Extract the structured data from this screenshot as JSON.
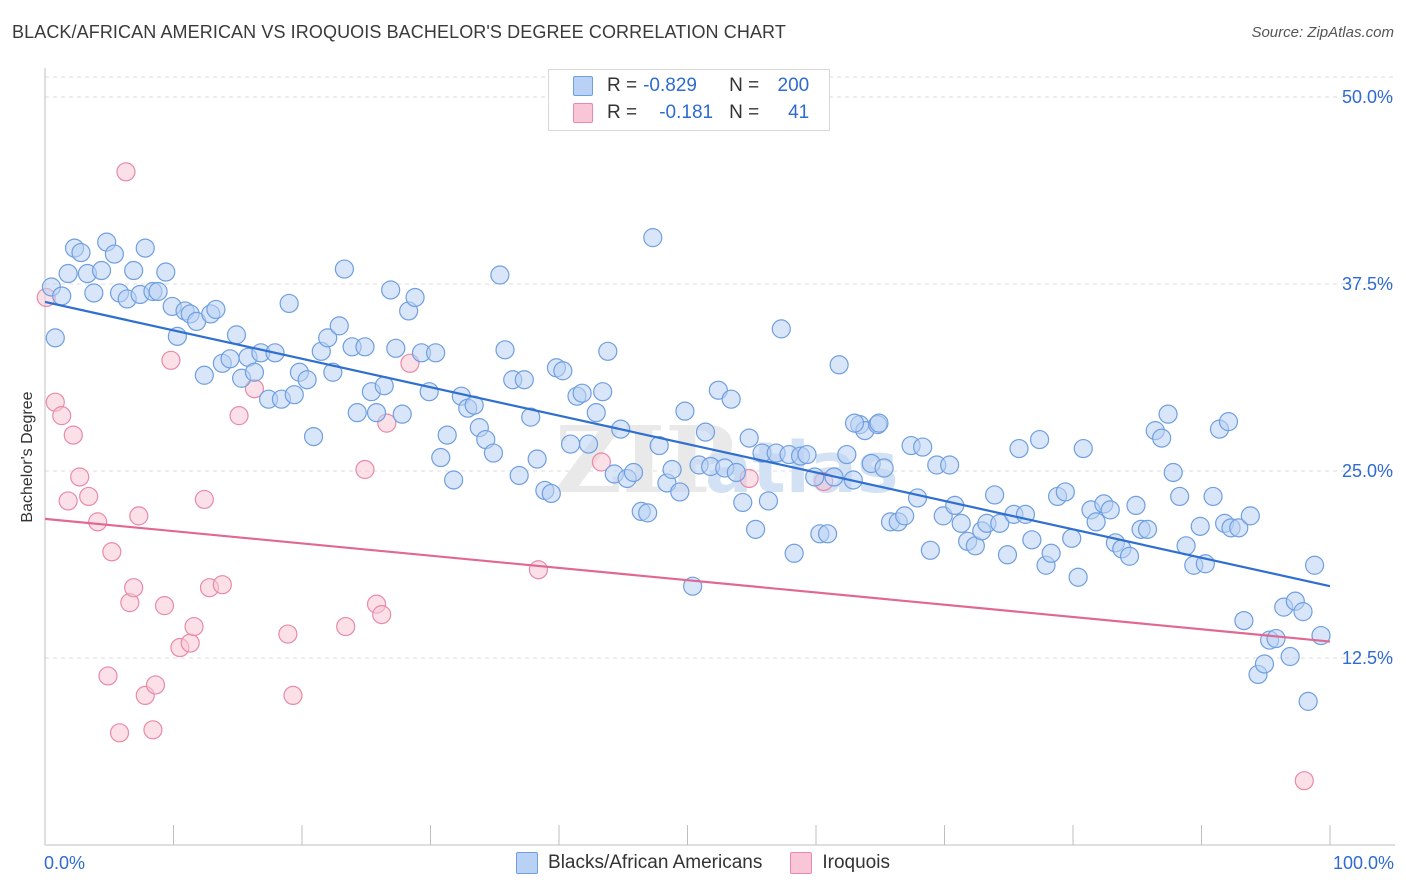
{
  "header": {
    "title": "BLACK/AFRICAN AMERICAN VS IROQUOIS BACHELOR'S DEGREE CORRELATION CHART",
    "source": "Source: ZipAtlas.com"
  },
  "legend": {
    "r_label": "R =",
    "n_label": "N =",
    "rows": [
      {
        "r": "-0.829",
        "n": "200"
      },
      {
        "r": "-0.181",
        "n": "41"
      }
    ]
  },
  "colors": {
    "blue_fill": "#b9d1f4",
    "blue_stroke": "#6f9fe0",
    "blue_line": "#2f6fd0",
    "pink_fill": "#f8c6d6",
    "pink_stroke": "#e88aa8",
    "pink_line": "#e06893",
    "grid": "#dcdcdc",
    "axis_label": "#2f6bd0"
  },
  "chart_data": {
    "type": "scatter",
    "title": "BLACK/AFRICAN AMERICAN VS IROQUOIS BACHELOR'S DEGREE CORRELATION CHART",
    "xlabel": "",
    "ylabel": "Bachelor's Degree",
    "xlim": [
      0,
      100
    ],
    "ylim": [
      0,
      50
    ],
    "x_tick_labels": [
      "0.0%",
      "100.0%"
    ],
    "y_ticks": [
      12.5,
      25.0,
      37.5,
      50.0
    ],
    "y_tick_labels": [
      "12.5%",
      "25.0%",
      "37.5%",
      "50.0%"
    ],
    "grid": true,
    "watermark": "ZIPatlas",
    "series": [
      {
        "name": "Blacks/African Americans",
        "color": "#6f9fe0",
        "trend": {
          "x": [
            0,
            100
          ],
          "y": [
            36.3,
            17.3
          ]
        },
        "points": [
          [
            0.5,
            37.3
          ],
          [
            0.8,
            33.9
          ],
          [
            1.3,
            36.7
          ],
          [
            1.8,
            38.2
          ],
          [
            2.3,
            39.9
          ],
          [
            2.8,
            39.6
          ],
          [
            3.3,
            38.2
          ],
          [
            3.8,
            36.9
          ],
          [
            4.4,
            38.4
          ],
          [
            4.8,
            40.3
          ],
          [
            5.4,
            39.5
          ],
          [
            5.8,
            36.9
          ],
          [
            6.4,
            36.5
          ],
          [
            6.9,
            38.4
          ],
          [
            7.4,
            36.8
          ],
          [
            7.8,
            39.9
          ],
          [
            8.4,
            37.0
          ],
          [
            8.8,
            37.0
          ],
          [
            9.4,
            38.3
          ],
          [
            9.9,
            36.0
          ],
          [
            10.3,
            34.0
          ],
          [
            10.9,
            35.7
          ],
          [
            11.3,
            35.5
          ],
          [
            11.8,
            35.0
          ],
          [
            12.4,
            31.4
          ],
          [
            12.9,
            35.5
          ],
          [
            13.3,
            35.8
          ],
          [
            13.8,
            32.2
          ],
          [
            14.4,
            32.5
          ],
          [
            14.9,
            34.1
          ],
          [
            15.3,
            31.2
          ],
          [
            15.8,
            32.6
          ],
          [
            16.3,
            31.6
          ],
          [
            16.8,
            32.9
          ],
          [
            17.4,
            29.8
          ],
          [
            17.9,
            32.9
          ],
          [
            18.4,
            29.8
          ],
          [
            19.0,
            36.2
          ],
          [
            19.4,
            30.1
          ],
          [
            19.8,
            31.6
          ],
          [
            20.4,
            31.1
          ],
          [
            20.9,
            27.3
          ],
          [
            21.5,
            33.0
          ],
          [
            22.0,
            33.9
          ],
          [
            22.4,
            31.6
          ],
          [
            22.9,
            34.7
          ],
          [
            23.3,
            38.5
          ],
          [
            23.9,
            33.3
          ],
          [
            24.3,
            28.9
          ],
          [
            24.9,
            33.3
          ],
          [
            25.4,
            30.3
          ],
          [
            25.8,
            28.9
          ],
          [
            26.4,
            30.7
          ],
          [
            26.9,
            37.1
          ],
          [
            27.3,
            33.2
          ],
          [
            27.8,
            28.8
          ],
          [
            28.3,
            35.7
          ],
          [
            28.8,
            36.6
          ],
          [
            29.3,
            32.9
          ],
          [
            29.9,
            30.3
          ],
          [
            30.4,
            32.9
          ],
          [
            30.8,
            25.9
          ],
          [
            31.3,
            27.4
          ],
          [
            31.8,
            24.4
          ],
          [
            32.4,
            30.0
          ],
          [
            32.9,
            29.2
          ],
          [
            33.4,
            29.4
          ],
          [
            33.8,
            27.9
          ],
          [
            34.3,
            27.1
          ],
          [
            34.9,
            26.2
          ],
          [
            35.4,
            38.1
          ],
          [
            35.8,
            33.1
          ],
          [
            36.4,
            31.1
          ],
          [
            36.9,
            24.7
          ],
          [
            37.3,
            31.1
          ],
          [
            37.8,
            28.6
          ],
          [
            38.3,
            25.8
          ],
          [
            38.9,
            23.7
          ],
          [
            39.4,
            23.5
          ],
          [
            39.8,
            31.9
          ],
          [
            40.3,
            31.7
          ],
          [
            40.9,
            26.8
          ],
          [
            41.4,
            30.0
          ],
          [
            41.8,
            30.2
          ],
          [
            42.3,
            26.8
          ],
          [
            42.9,
            28.9
          ],
          [
            43.4,
            30.3
          ],
          [
            43.8,
            33.0
          ],
          [
            44.3,
            24.8
          ],
          [
            44.8,
            27.8
          ],
          [
            45.3,
            24.5
          ],
          [
            45.8,
            24.9
          ],
          [
            46.4,
            22.3
          ],
          [
            46.9,
            22.2
          ],
          [
            47.3,
            40.6
          ],
          [
            47.8,
            26.7
          ],
          [
            48.4,
            24.2
          ],
          [
            48.8,
            25.1
          ],
          [
            49.4,
            23.6
          ],
          [
            49.8,
            29.0
          ],
          [
            50.4,
            17.3
          ],
          [
            50.9,
            25.4
          ],
          [
            51.4,
            27.6
          ],
          [
            51.8,
            25.3
          ],
          [
            52.4,
            30.4
          ],
          [
            52.9,
            25.2
          ],
          [
            53.4,
            29.8
          ],
          [
            53.8,
            24.9
          ],
          [
            54.3,
            22.9
          ],
          [
            54.8,
            27.2
          ],
          [
            55.3,
            21.1
          ],
          [
            55.8,
            26.2
          ],
          [
            56.3,
            23.0
          ],
          [
            56.9,
            26.2
          ],
          [
            57.3,
            34.5
          ],
          [
            57.9,
            26.1
          ],
          [
            58.3,
            19.5
          ],
          [
            58.8,
            26.0
          ],
          [
            59.3,
            26.1
          ],
          [
            59.9,
            24.6
          ],
          [
            60.3,
            20.8
          ],
          [
            60.9,
            20.8
          ],
          [
            61.4,
            24.6
          ],
          [
            61.8,
            32.1
          ],
          [
            62.4,
            26.1
          ],
          [
            62.9,
            24.4
          ],
          [
            63.4,
            28.1
          ],
          [
            63.8,
            27.7
          ],
          [
            64.3,
            25.5
          ],
          [
            64.8,
            28.1
          ],
          [
            65.3,
            25.2
          ],
          [
            65.8,
            21.6
          ],
          [
            66.4,
            21.6
          ],
          [
            66.9,
            22.0
          ],
          [
            67.4,
            26.7
          ],
          [
            67.9,
            23.2
          ],
          [
            68.3,
            26.6
          ],
          [
            68.9,
            19.7
          ],
          [
            69.4,
            25.4
          ],
          [
            69.9,
            22.0
          ],
          [
            70.4,
            25.4
          ],
          [
            70.8,
            22.7
          ],
          [
            71.3,
            21.5
          ],
          [
            71.8,
            20.3
          ],
          [
            72.4,
            20.0
          ],
          [
            72.9,
            21.0
          ],
          [
            73.3,
            21.5
          ],
          [
            73.9,
            23.4
          ],
          [
            74.3,
            21.5
          ],
          [
            74.9,
            19.4
          ],
          [
            75.4,
            22.1
          ],
          [
            75.8,
            26.5
          ],
          [
            76.3,
            22.1
          ],
          [
            76.8,
            20.4
          ],
          [
            77.4,
            27.1
          ],
          [
            77.9,
            18.7
          ],
          [
            78.3,
            19.5
          ],
          [
            78.8,
            23.3
          ],
          [
            79.4,
            23.6
          ],
          [
            79.9,
            20.5
          ],
          [
            80.4,
            17.9
          ],
          [
            80.8,
            26.5
          ],
          [
            81.4,
            22.4
          ],
          [
            81.8,
            21.6
          ],
          [
            82.4,
            22.8
          ],
          [
            82.9,
            22.4
          ],
          [
            83.3,
            20.2
          ],
          [
            83.8,
            19.8
          ],
          [
            84.4,
            19.3
          ],
          [
            84.9,
            22.7
          ],
          [
            85.3,
            21.1
          ],
          [
            85.8,
            21.1
          ],
          [
            86.4,
            27.7
          ],
          [
            86.9,
            27.2
          ],
          [
            87.4,
            28.8
          ],
          [
            87.8,
            24.9
          ],
          [
            88.3,
            23.3
          ],
          [
            88.8,
            20.0
          ],
          [
            89.4,
            18.7
          ],
          [
            89.9,
            21.3
          ],
          [
            90.3,
            18.8
          ],
          [
            90.9,
            23.3
          ],
          [
            91.4,
            27.8
          ],
          [
            91.8,
            21.5
          ],
          [
            92.3,
            21.2
          ],
          [
            92.9,
            21.2
          ],
          [
            93.3,
            15.0
          ],
          [
            93.8,
            22.0
          ],
          [
            94.4,
            11.4
          ],
          [
            94.9,
            12.1
          ],
          [
            95.3,
            13.7
          ],
          [
            95.8,
            13.8
          ],
          [
            96.4,
            15.9
          ],
          [
            96.9,
            12.6
          ],
          [
            97.3,
            16.3
          ],
          [
            97.9,
            15.6
          ],
          [
            98.3,
            9.6
          ],
          [
            98.8,
            18.7
          ],
          [
            99.3,
            14.0
          ],
          [
            63.0,
            28.2
          ],
          [
            64.9,
            28.2
          ],
          [
            92.1,
            28.3
          ]
        ]
      },
      {
        "name": "Iroquois",
        "color": "#e88aa8",
        "trend": {
          "x": [
            0,
            100
          ],
          "y": [
            21.8,
            13.6
          ]
        },
        "points": [
          [
            0.1,
            36.6
          ],
          [
            0.8,
            29.6
          ],
          [
            1.3,
            28.7
          ],
          [
            1.8,
            23.0
          ],
          [
            2.2,
            27.4
          ],
          [
            2.7,
            24.6
          ],
          [
            3.4,
            23.3
          ],
          [
            4.1,
            21.6
          ],
          [
            4.9,
            11.3
          ],
          [
            5.2,
            19.6
          ],
          [
            5.8,
            7.5
          ],
          [
            6.3,
            45.0
          ],
          [
            6.6,
            16.2
          ],
          [
            6.9,
            17.2
          ],
          [
            7.3,
            22.0
          ],
          [
            7.8,
            10.0
          ],
          [
            8.4,
            7.7
          ],
          [
            8.6,
            10.7
          ],
          [
            9.3,
            16.0
          ],
          [
            9.8,
            32.4
          ],
          [
            10.5,
            13.2
          ],
          [
            11.3,
            13.5
          ],
          [
            11.6,
            14.6
          ],
          [
            12.4,
            23.1
          ],
          [
            12.8,
            17.2
          ],
          [
            13.8,
            17.4
          ],
          [
            15.1,
            28.7
          ],
          [
            16.3,
            30.5
          ],
          [
            18.9,
            14.1
          ],
          [
            19.3,
            10.0
          ],
          [
            23.4,
            14.6
          ],
          [
            24.9,
            25.1
          ],
          [
            25.8,
            16.1
          ],
          [
            26.2,
            15.4
          ],
          [
            26.6,
            28.2
          ],
          [
            28.4,
            32.2
          ],
          [
            38.4,
            18.4
          ],
          [
            43.3,
            25.6
          ],
          [
            54.8,
            24.5
          ],
          [
            60.6,
            24.3
          ],
          [
            98.0,
            4.3
          ]
        ]
      }
    ]
  }
}
